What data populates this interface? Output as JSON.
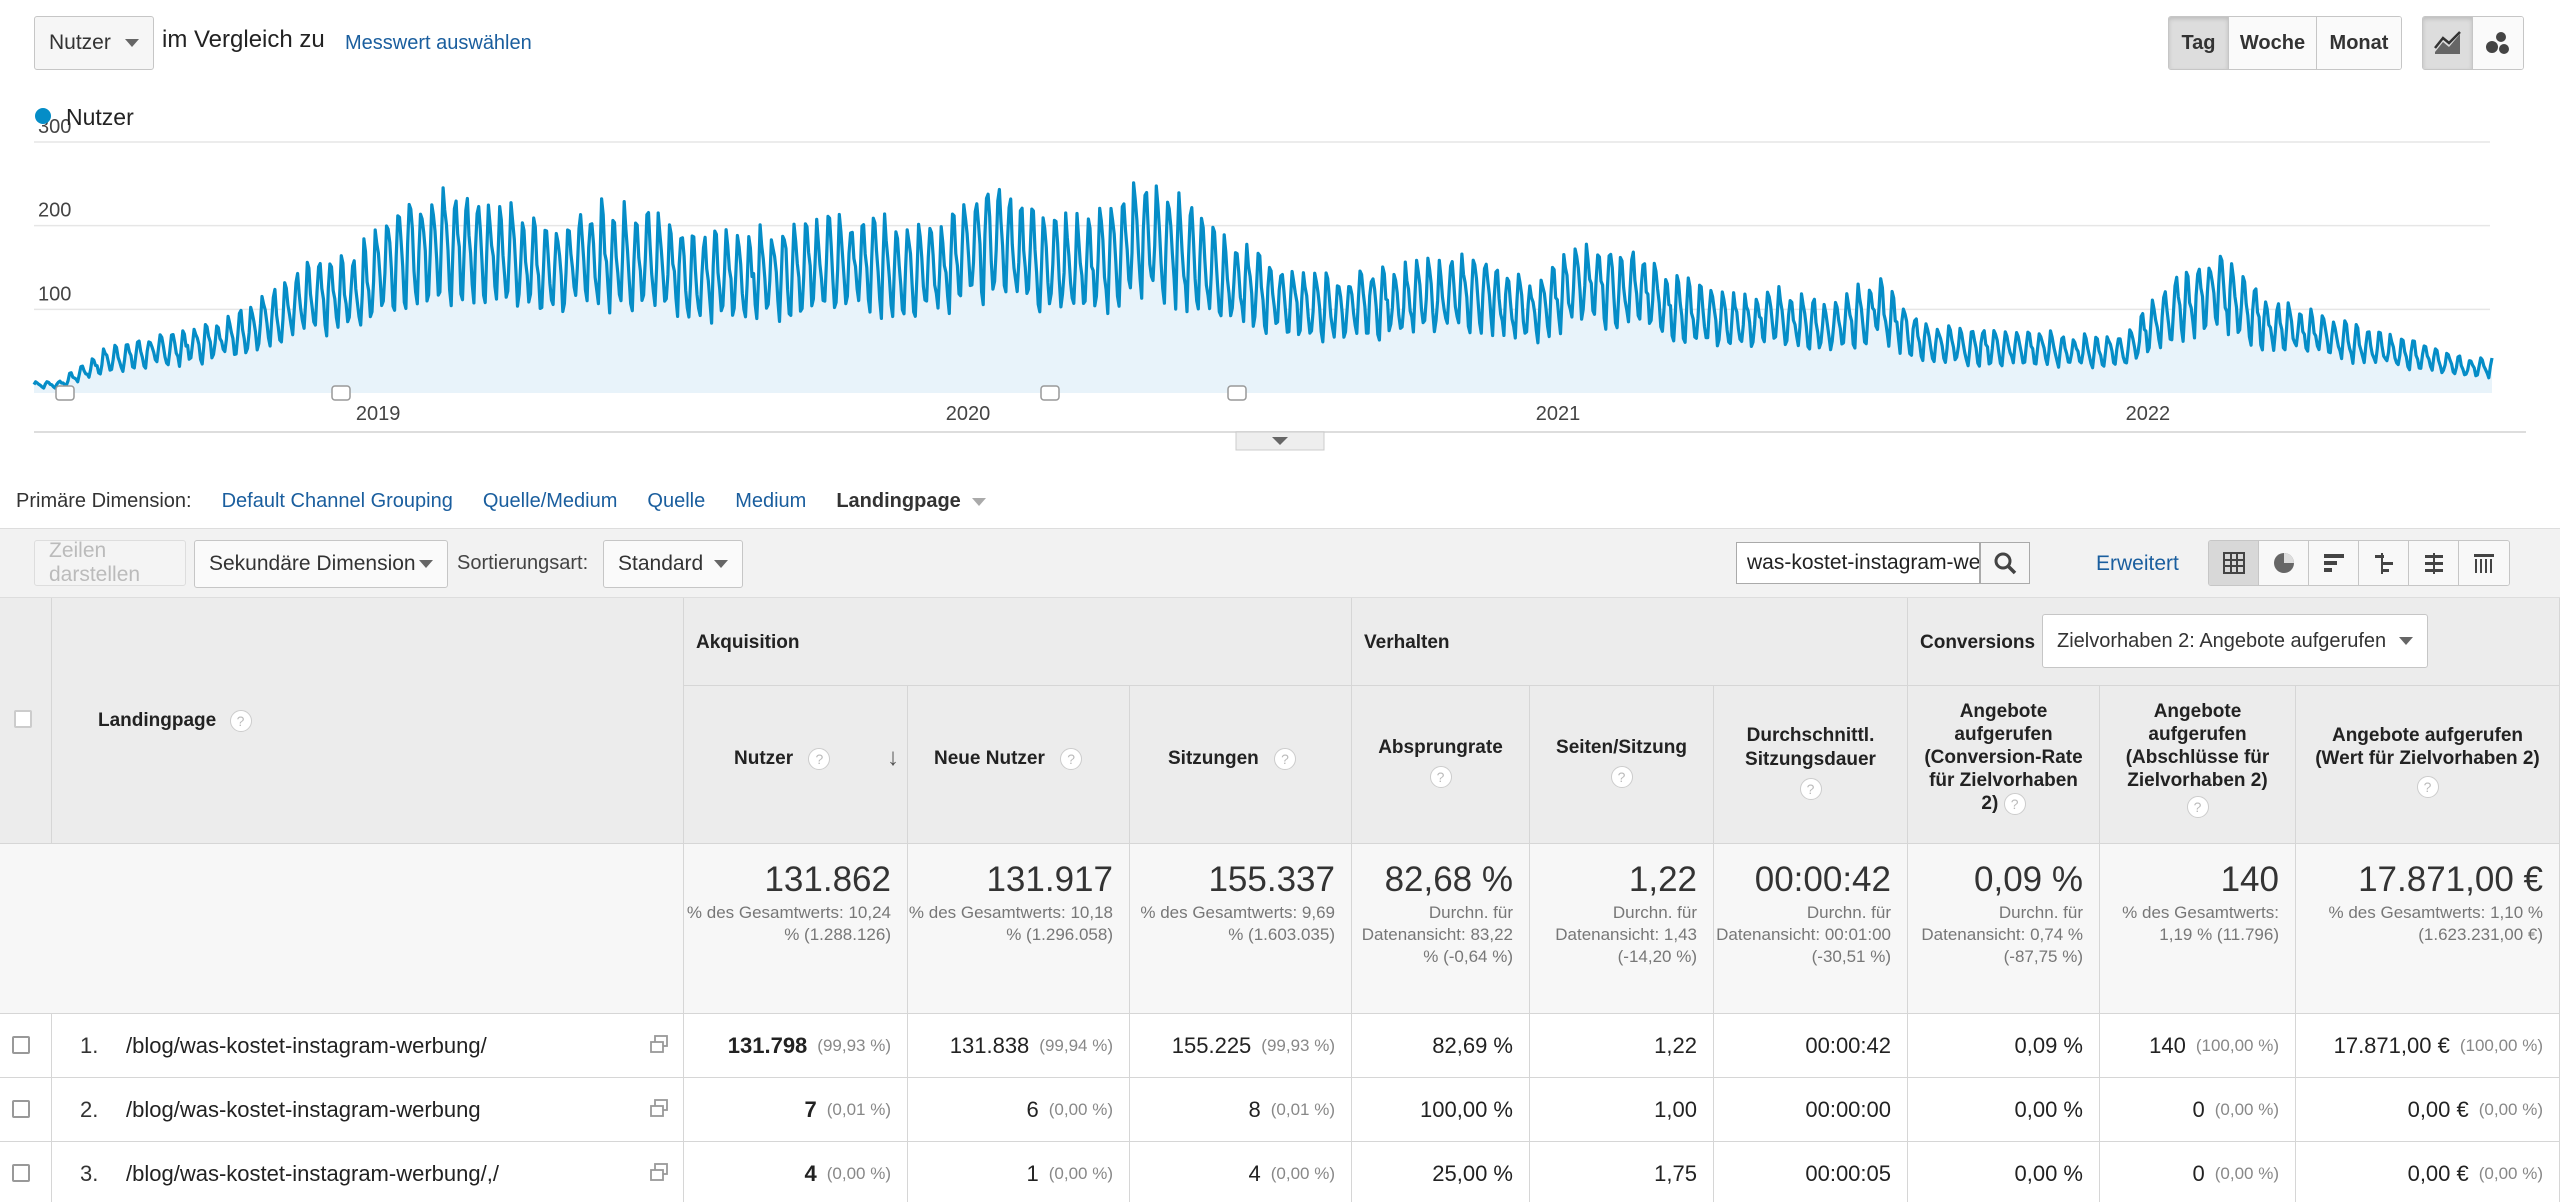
{
  "controls": {
    "metric_select": "Nutzer",
    "compare_text": "im Vergleich zu",
    "select_metric_link": "Messwert auswählen",
    "periods": [
      "Tag",
      "Woche",
      "Monat"
    ],
    "active_period": "Tag"
  },
  "chart_data": {
    "type": "area",
    "legend": "Nutzer",
    "color": "#058dc7",
    "y_ticks": [
      "300",
      "200",
      "100"
    ],
    "ylim": [
      0,
      300
    ],
    "x_labels": [
      "2019",
      "2020",
      "2021",
      "2022"
    ],
    "x_range": [
      "2018-06",
      "2022-07"
    ],
    "monthly_avg": [
      {
        "month": "2018-06",
        "value": 10
      },
      {
        "month": "2018-07",
        "value": 40
      },
      {
        "month": "2018-08",
        "value": 50
      },
      {
        "month": "2018-09",
        "value": 60
      },
      {
        "month": "2018-10",
        "value": 80
      },
      {
        "month": "2018-11",
        "value": 110
      },
      {
        "month": "2018-12",
        "value": 120
      },
      {
        "month": "2019-01",
        "value": 170
      },
      {
        "month": "2019-02",
        "value": 175
      },
      {
        "month": "2019-03",
        "value": 165
      },
      {
        "month": "2019-04",
        "value": 150
      },
      {
        "month": "2019-05",
        "value": 165
      },
      {
        "month": "2019-06",
        "value": 160
      },
      {
        "month": "2019-07",
        "value": 140
      },
      {
        "month": "2019-08",
        "value": 140
      },
      {
        "month": "2019-09",
        "value": 150
      },
      {
        "month": "2019-10",
        "value": 155
      },
      {
        "month": "2019-11",
        "value": 150
      },
      {
        "month": "2019-12",
        "value": 150
      },
      {
        "month": "2020-01",
        "value": 185
      },
      {
        "month": "2020-02",
        "value": 160
      },
      {
        "month": "2020-03",
        "value": 150
      },
      {
        "month": "2020-04",
        "value": 185
      },
      {
        "month": "2020-05",
        "value": 165
      },
      {
        "month": "2020-06",
        "value": 130
      },
      {
        "month": "2020-07",
        "value": 110
      },
      {
        "month": "2020-08",
        "value": 100
      },
      {
        "month": "2020-09",
        "value": 110
      },
      {
        "month": "2020-10",
        "value": 115
      },
      {
        "month": "2020-11",
        "value": 120
      },
      {
        "month": "2020-12",
        "value": 95
      },
      {
        "month": "2021-01",
        "value": 135
      },
      {
        "month": "2021-02",
        "value": 125
      },
      {
        "month": "2021-03",
        "value": 100
      },
      {
        "month": "2021-04",
        "value": 85
      },
      {
        "month": "2021-05",
        "value": 90
      },
      {
        "month": "2021-06",
        "value": 80
      },
      {
        "month": "2021-07",
        "value": 100
      },
      {
        "month": "2021-08",
        "value": 60
      },
      {
        "month": "2021-09",
        "value": 55
      },
      {
        "month": "2021-10",
        "value": 55
      },
      {
        "month": "2021-11",
        "value": 50
      },
      {
        "month": "2021-12",
        "value": 50
      },
      {
        "month": "2022-01",
        "value": 100
      },
      {
        "month": "2022-02",
        "value": 125
      },
      {
        "month": "2022-03",
        "value": 80
      },
      {
        "month": "2022-04",
        "value": 70
      },
      {
        "month": "2022-05",
        "value": 55
      },
      {
        "month": "2022-06",
        "value": 45
      },
      {
        "month": "2022-07",
        "value": 30
      }
    ],
    "grid": true
  },
  "dimensions": {
    "label": "Primäre Dimension:",
    "items": [
      "Default Channel Grouping",
      "Quelle/Medium",
      "Quelle",
      "Medium",
      "Landingpage"
    ],
    "active": "Landingpage"
  },
  "toolbar": {
    "show_rows": "Zeilen darstellen",
    "secondary_dimension": "Sekundäre Dimension",
    "sort_label": "Sortierungsart:",
    "sort_value": "Standard",
    "search_value": "was-kostet-instagram-wer",
    "advanced": "Erweitert"
  },
  "table": {
    "dim_header": "Landingpage",
    "groups": {
      "acquisition": "Akquisition",
      "behavior": "Verhalten",
      "conversions": "Conversions",
      "goal_select": "Zielvorhaben 2: Angebote aufgerufen"
    },
    "columns": {
      "users": "Nutzer",
      "new_users": "Neue Nutzer",
      "sessions": "Sitzungen",
      "bounce": "Absprungrate",
      "pages": "Seiten/Sitzung",
      "duration": "Durchschnittl. Sitzungsdauer",
      "conv_rate": "Angebote aufgerufen (Conversion-Rate für Zielvorhaben 2)",
      "completions": "Angebote aufgerufen (Abschlüsse für Zielvorhaben 2)",
      "value": "Angebote aufgerufen (Wert für Zielvorhaben 2)"
    },
    "totals": {
      "users": {
        "big": "131.862",
        "sm": "% des Gesamtwerts: 10,24 % (1.288.126)"
      },
      "new_users": {
        "big": "131.917",
        "sm": "% des Gesamtwerts: 10,18 % (1.296.058)"
      },
      "sessions": {
        "big": "155.337",
        "sm": "% des Gesamtwerts: 9,69 % (1.603.035)"
      },
      "bounce": {
        "big": "82,68 %",
        "sm": "Durchn. für Datenansicht: 83,22 % (-0,64 %)"
      },
      "pages": {
        "big": "1,22",
        "sm": "Durchn. für Datenansicht: 1,43 (-14,20 %)"
      },
      "duration": {
        "big": "00:00:42",
        "sm": "Durchn. für Datenansicht: 00:01:00 (-30,51 %)"
      },
      "conv_rate": {
        "big": "0,09 %",
        "sm": "Durchn. für Datenansicht: 0,74 % (-87,75 %)"
      },
      "completions": {
        "big": "140",
        "sm": "% des Gesamtwerts: 1,19 % (11.796)"
      },
      "value": {
        "big": "17.871,00 €",
        "sm": "% des Gesamtwerts: 1,10 % (1.623.231,00 €)"
      }
    },
    "rows": [
      {
        "idx": "1.",
        "page": "/blog/was-kostet-instagram-werbung/",
        "users": "131.798",
        "users_pct": "(99,93 %)",
        "new_users": "131.838",
        "new_users_pct": "(99,94 %)",
        "sessions": "155.225",
        "sessions_pct": "(99,93 %)",
        "bounce": "82,69 %",
        "pages": "1,22",
        "duration": "00:00:42",
        "conv_rate": "0,09 %",
        "completions": "140",
        "completions_pct": "(100,00 %)",
        "value": "17.871,00 €",
        "value_pct": "(100,00 %)"
      },
      {
        "idx": "2.",
        "page": "/blog/was-kostet-instagram-werbung",
        "users": "7",
        "users_pct": "(0,01 %)",
        "new_users": "6",
        "new_users_pct": "(0,00 %)",
        "sessions": "8",
        "sessions_pct": "(0,01 %)",
        "bounce": "100,00 %",
        "pages": "1,00",
        "duration": "00:00:00",
        "conv_rate": "0,00 %",
        "completions": "0",
        "completions_pct": "(0,00 %)",
        "value": "0,00 €",
        "value_pct": "(0,00 %)"
      },
      {
        "idx": "3.",
        "page": "/blog/was-kostet-instagram-werbung/,/",
        "users": "4",
        "users_pct": "(0,00 %)",
        "new_users": "1",
        "new_users_pct": "(0,00 %)",
        "sessions": "4",
        "sessions_pct": "(0,00 %)",
        "bounce": "25,00 %",
        "pages": "1,75",
        "duration": "00:00:05",
        "conv_rate": "0,00 %",
        "completions": "0",
        "completions_pct": "(0,00 %)",
        "value": "0,00 €",
        "value_pct": "(0,00 %)"
      }
    ]
  }
}
